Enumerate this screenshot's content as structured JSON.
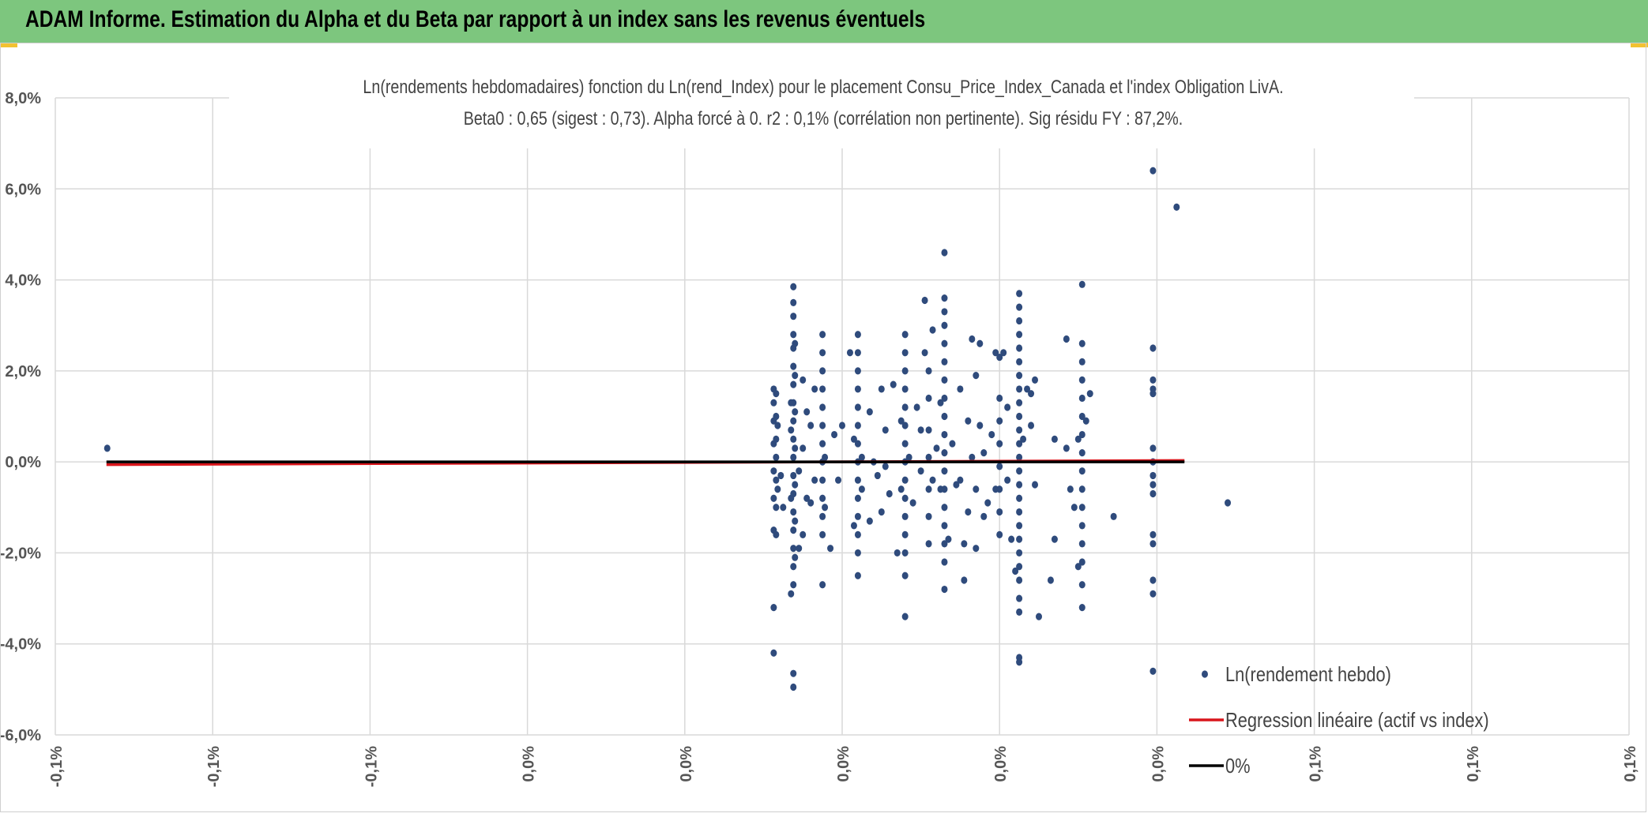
{
  "header": {
    "title": "ADAM Informe. Estimation du Alpha et du Beta par rapport à un index sans les revenus éventuels",
    "background": "#7dc67e",
    "corner_color": "#f2c231"
  },
  "chart_data": {
    "type": "scatter",
    "title_line1": "Ln(rendements hebdomadaires) fonction du Ln(rend_Index) pour le placement Consu_Price_Index_Canada et l'index Obligation LivA.",
    "title_line2": "Beta0 : 0,65 (sigest : 0,73). Alpha forcé à 0. r2 : 0,1% (corrélation non pertinente). Sig résidu FY : 87,2%.",
    "x_tick_labels": [
      "-0,1%",
      "-0,1%",
      "-0,1%",
      "0,0%",
      "0,0%",
      "0,0%",
      "0,0%",
      "0,0%",
      "0,1%",
      "0,1%",
      "0,1%"
    ],
    "y_tick_labels": [
      "8,0%",
      "6,0%",
      "4,0%",
      "2,0%",
      "0,0%",
      "-2,0%",
      "-4,0%",
      "-6,0%"
    ],
    "xlim": [
      -0.1,
      0.1
    ],
    "ylim": [
      -6.0,
      8.0
    ],
    "grid": true,
    "legend_position": "bottom-right",
    "series": [
      {
        "name": "Ln(rendement hebdo)",
        "kind": "scatter",
        "color": "#2f4b7c",
        "points": [
          [
            -0.0934,
            0.3
          ],
          [
            -0.0087,
            1.6
          ],
          [
            -0.0087,
            1.3
          ],
          [
            -0.0087,
            0.9
          ],
          [
            -0.0087,
            0.4
          ],
          [
            -0.0087,
            -0.2
          ],
          [
            -0.0087,
            -0.8
          ],
          [
            -0.0087,
            -1.5
          ],
          [
            -0.0087,
            -3.2
          ],
          [
            -0.0087,
            -4.2
          ],
          [
            -0.0084,
            1.5
          ],
          [
            -0.0084,
            1.0
          ],
          [
            -0.0084,
            0.5
          ],
          [
            -0.0084,
            0.1
          ],
          [
            -0.0084,
            -0.4
          ],
          [
            -0.0084,
            -1.0
          ],
          [
            -0.0084,
            -1.6
          ],
          [
            -0.0082,
            0.8
          ],
          [
            -0.0082,
            -0.6
          ],
          [
            -0.0078,
            -0.3
          ],
          [
            -0.0075,
            -1.0
          ],
          [
            -0.0065,
            1.3
          ],
          [
            -0.0065,
            0.7
          ],
          [
            -0.0065,
            -0.8
          ],
          [
            -0.0065,
            -2.9
          ],
          [
            -0.0062,
            3.85
          ],
          [
            -0.0062,
            3.5
          ],
          [
            -0.0062,
            3.2
          ],
          [
            -0.0062,
            2.8
          ],
          [
            -0.0062,
            2.5
          ],
          [
            -0.0062,
            2.1
          ],
          [
            -0.0062,
            1.7
          ],
          [
            -0.0062,
            1.3
          ],
          [
            -0.0062,
            0.9
          ],
          [
            -0.0062,
            0.5
          ],
          [
            -0.0062,
            0.1
          ],
          [
            -0.0062,
            -0.3
          ],
          [
            -0.0062,
            -0.7
          ],
          [
            -0.0062,
            -1.1
          ],
          [
            -0.0062,
            -1.5
          ],
          [
            -0.0062,
            -1.9
          ],
          [
            -0.0062,
            -2.3
          ],
          [
            -0.0062,
            -2.7
          ],
          [
            -0.0062,
            -4.65
          ],
          [
            -0.0062,
            -4.95
          ],
          [
            -0.006,
            2.6
          ],
          [
            -0.006,
            1.9
          ],
          [
            -0.006,
            1.1
          ],
          [
            -0.006,
            0.3
          ],
          [
            -0.006,
            -0.5
          ],
          [
            -0.006,
            -1.3
          ],
          [
            -0.006,
            -2.1
          ],
          [
            -0.0055,
            -0.2
          ],
          [
            -0.0055,
            -1.9
          ],
          [
            -0.005,
            1.8
          ],
          [
            -0.005,
            0.3
          ],
          [
            -0.005,
            -1.6
          ],
          [
            -0.0045,
            1.1
          ],
          [
            -0.0045,
            -0.8
          ],
          [
            -0.004,
            0.8
          ],
          [
            -0.004,
            -0.9
          ],
          [
            -0.0035,
            -0.4
          ],
          [
            -0.0035,
            1.6
          ],
          [
            -0.0025,
            2.8
          ],
          [
            -0.0025,
            2.4
          ],
          [
            -0.0025,
            2.0
          ],
          [
            -0.0025,
            1.6
          ],
          [
            -0.0025,
            1.2
          ],
          [
            -0.0025,
            0.8
          ],
          [
            -0.0025,
            0.4
          ],
          [
            -0.0025,
            0.0
          ],
          [
            -0.0025,
            -0.4
          ],
          [
            -0.0025,
            -0.8
          ],
          [
            -0.0025,
            -1.2
          ],
          [
            -0.0025,
            -1.6
          ],
          [
            -0.0025,
            -2.7
          ],
          [
            -0.0022,
            0.1
          ],
          [
            -0.0022,
            -1.0
          ],
          [
            -0.0015,
            -1.9
          ],
          [
            -0.001,
            0.6
          ],
          [
            -0.0005,
            -0.4
          ],
          [
            0.0,
            0.8
          ],
          [
            0.001,
            2.4
          ],
          [
            0.0015,
            0.5
          ],
          [
            0.0015,
            -1.4
          ],
          [
            0.002,
            2.8
          ],
          [
            0.002,
            2.4
          ],
          [
            0.002,
            2.0
          ],
          [
            0.002,
            1.6
          ],
          [
            0.002,
            1.2
          ],
          [
            0.002,
            0.8
          ],
          [
            0.002,
            0.4
          ],
          [
            0.002,
            0.0
          ],
          [
            0.002,
            -0.4
          ],
          [
            0.002,
            -0.8
          ],
          [
            0.002,
            -1.2
          ],
          [
            0.002,
            -1.6
          ],
          [
            0.002,
            -2.0
          ],
          [
            0.002,
            -2.5
          ],
          [
            0.0025,
            0.1
          ],
          [
            0.0025,
            -0.6
          ],
          [
            0.0035,
            1.1
          ],
          [
            0.0035,
            -1.3
          ],
          [
            0.004,
            0.0
          ],
          [
            0.0045,
            -0.3
          ],
          [
            0.005,
            1.6
          ],
          [
            0.005,
            -1.1
          ],
          [
            0.0055,
            0.7
          ],
          [
            0.0055,
            -0.1
          ],
          [
            0.006,
            -0.7
          ],
          [
            0.0065,
            1.7
          ],
          [
            0.007,
            -2.0
          ],
          [
            0.0075,
            0.9
          ],
          [
            0.0075,
            -0.6
          ],
          [
            0.008,
            2.8
          ],
          [
            0.008,
            2.4
          ],
          [
            0.008,
            2.0
          ],
          [
            0.008,
            1.6
          ],
          [
            0.008,
            1.2
          ],
          [
            0.008,
            0.8
          ],
          [
            0.008,
            0.4
          ],
          [
            0.008,
            0.0
          ],
          [
            0.008,
            -0.4
          ],
          [
            0.008,
            -0.8
          ],
          [
            0.008,
            -1.2
          ],
          [
            0.008,
            -1.6
          ],
          [
            0.008,
            -2.0
          ],
          [
            0.008,
            -2.5
          ],
          [
            0.008,
            -3.4
          ],
          [
            0.0085,
            0.1
          ],
          [
            0.009,
            -0.9
          ],
          [
            0.0095,
            1.2
          ],
          [
            0.01,
            0.7
          ],
          [
            0.01,
            -0.2
          ],
          [
            0.0105,
            3.55
          ],
          [
            0.0105,
            2.4
          ],
          [
            0.011,
            2.0
          ],
          [
            0.011,
            1.4
          ],
          [
            0.011,
            0.7
          ],
          [
            0.011,
            0.1
          ],
          [
            0.011,
            -0.6
          ],
          [
            0.011,
            -1.2
          ],
          [
            0.011,
            -1.8
          ],
          [
            0.0115,
            2.9
          ],
          [
            0.0115,
            -0.4
          ],
          [
            0.012,
            0.3
          ],
          [
            0.0125,
            -0.6
          ],
          [
            0.0125,
            1.3
          ],
          [
            0.013,
            4.6
          ],
          [
            0.013,
            3.6
          ],
          [
            0.013,
            3.3
          ],
          [
            0.013,
            3.0
          ],
          [
            0.013,
            2.6
          ],
          [
            0.013,
            2.2
          ],
          [
            0.013,
            1.8
          ],
          [
            0.013,
            1.4
          ],
          [
            0.013,
            1.0
          ],
          [
            0.013,
            0.6
          ],
          [
            0.013,
            0.2
          ],
          [
            0.013,
            -0.2
          ],
          [
            0.013,
            -0.6
          ],
          [
            0.013,
            -1.0
          ],
          [
            0.013,
            -1.4
          ],
          [
            0.013,
            -1.8
          ],
          [
            0.013,
            -2.2
          ],
          [
            0.013,
            -2.8
          ],
          [
            0.0135,
            -1.7
          ],
          [
            0.014,
            0.4
          ],
          [
            0.0145,
            -0.5
          ],
          [
            0.015,
            1.6
          ],
          [
            0.015,
            -0.4
          ],
          [
            0.0155,
            -1.8
          ],
          [
            0.0155,
            -2.6
          ],
          [
            0.016,
            0.9
          ],
          [
            0.016,
            -1.1
          ],
          [
            0.0165,
            2.7
          ],
          [
            0.0165,
            0.1
          ],
          [
            0.017,
            1.9
          ],
          [
            0.017,
            -0.6
          ],
          [
            0.017,
            -1.9
          ],
          [
            0.0175,
            2.6
          ],
          [
            0.0175,
            0.8
          ],
          [
            0.018,
            -1.2
          ],
          [
            0.018,
            0.2
          ],
          [
            0.0185,
            -0.9
          ],
          [
            0.019,
            0.6
          ],
          [
            0.0195,
            2.4
          ],
          [
            0.0195,
            -0.6
          ],
          [
            0.02,
            1.4
          ],
          [
            0.02,
            0.9
          ],
          [
            0.02,
            0.4
          ],
          [
            0.02,
            -0.1
          ],
          [
            0.02,
            -0.6
          ],
          [
            0.02,
            -1.1
          ],
          [
            0.02,
            -1.6
          ],
          [
            0.02,
            2.3
          ],
          [
            0.0205,
            2.4
          ],
          [
            0.021,
            -0.4
          ],
          [
            0.021,
            1.2
          ],
          [
            0.0215,
            -1.7
          ],
          [
            0.0225,
            3.7
          ],
          [
            0.0225,
            3.4
          ],
          [
            0.0225,
            3.1
          ],
          [
            0.0225,
            2.8
          ],
          [
            0.0225,
            2.5
          ],
          [
            0.0225,
            2.2
          ],
          [
            0.0225,
            1.9
          ],
          [
            0.0225,
            1.6
          ],
          [
            0.0225,
            1.3
          ],
          [
            0.0225,
            1.0
          ],
          [
            0.0225,
            0.7
          ],
          [
            0.0225,
            0.4
          ],
          [
            0.0225,
            0.1
          ],
          [
            0.0225,
            -0.2
          ],
          [
            0.0225,
            -0.5
          ],
          [
            0.0225,
            -0.8
          ],
          [
            0.0225,
            -1.1
          ],
          [
            0.0225,
            -1.4
          ],
          [
            0.0225,
            -1.7
          ],
          [
            0.0225,
            -2.0
          ],
          [
            0.0225,
            -2.3
          ],
          [
            0.0225,
            -2.6
          ],
          [
            0.0225,
            -3.0
          ],
          [
            0.0225,
            -3.3
          ],
          [
            0.0225,
            -4.3
          ],
          [
            0.0225,
            -4.4
          ],
          [
            0.022,
            -2.4
          ],
          [
            0.023,
            0.5
          ],
          [
            0.0235,
            1.6
          ],
          [
            0.024,
            1.5
          ],
          [
            0.024,
            0.8
          ],
          [
            0.0245,
            -0.5
          ],
          [
            0.0245,
            1.8
          ],
          [
            0.025,
            -3.4
          ],
          [
            0.0265,
            -2.6
          ],
          [
            0.027,
            -1.7
          ],
          [
            0.027,
            0.5
          ],
          [
            0.0285,
            2.7
          ],
          [
            0.0285,
            0.3
          ],
          [
            0.029,
            -0.6
          ],
          [
            0.0295,
            -1.0
          ],
          [
            0.03,
            0.5
          ],
          [
            0.03,
            -2.3
          ],
          [
            0.0305,
            3.9
          ],
          [
            0.0305,
            2.6
          ],
          [
            0.0305,
            2.2
          ],
          [
            0.0305,
            1.8
          ],
          [
            0.0305,
            1.4
          ],
          [
            0.0305,
            1.0
          ],
          [
            0.0305,
            0.6
          ],
          [
            0.0305,
            0.2
          ],
          [
            0.0305,
            -0.2
          ],
          [
            0.0305,
            -0.6
          ],
          [
            0.0305,
            -1.0
          ],
          [
            0.0305,
            -1.4
          ],
          [
            0.0305,
            -1.8
          ],
          [
            0.0305,
            -2.2
          ],
          [
            0.0305,
            -2.7
          ],
          [
            0.0305,
            -3.2
          ],
          [
            0.031,
            0.9
          ],
          [
            0.0315,
            1.5
          ],
          [
            0.0345,
            -1.2
          ],
          [
            0.0395,
            2.5
          ],
          [
            0.0395,
            1.8
          ],
          [
            0.0395,
            1.6
          ],
          [
            0.0395,
            1.5
          ],
          [
            0.0395,
            0.3
          ],
          [
            0.0395,
            0.0
          ],
          [
            0.0395,
            -0.3
          ],
          [
            0.0395,
            -0.5
          ],
          [
            0.0395,
            -0.7
          ],
          [
            0.0395,
            -1.6
          ],
          [
            0.0395,
            -1.8
          ],
          [
            0.0395,
            -2.6
          ],
          [
            0.0395,
            -2.9
          ],
          [
            0.0395,
            -4.6
          ],
          [
            0.0395,
            6.4
          ],
          [
            0.0425,
            5.6
          ],
          [
            0.049,
            -0.9
          ]
        ]
      },
      {
        "name": "Regression linéaire (actif vs index)",
        "kind": "line",
        "color": "#d9151b",
        "points": [
          [
            -0.0935,
            -0.06
          ],
          [
            0.0435,
            0.03
          ]
        ]
      },
      {
        "name": "0%",
        "kind": "line",
        "color": "#000000",
        "points": [
          [
            -0.0935,
            0.0
          ],
          [
            0.0435,
            0.0
          ]
        ]
      }
    ]
  }
}
